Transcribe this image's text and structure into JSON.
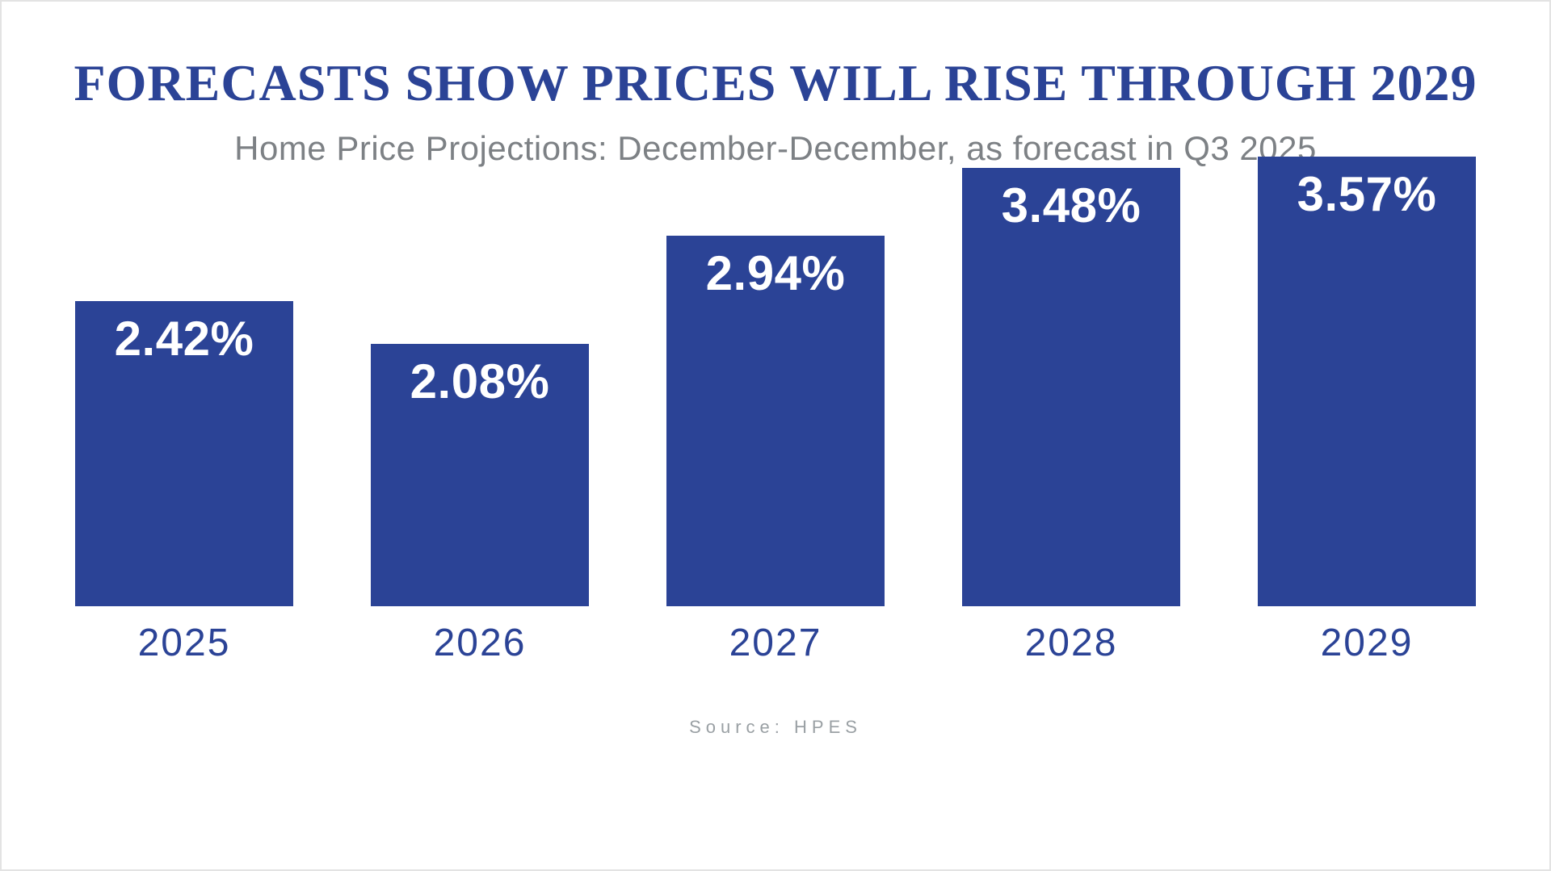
{
  "chart_data": {
    "type": "bar",
    "title": "FORECASTS SHOW PRICES WILL RISE THROUGH 2029",
    "subtitle": "Home Price Projections: December-December, as forecast in Q3 2025",
    "categories": [
      "2025",
      "2026",
      "2027",
      "2028",
      "2029"
    ],
    "values": [
      2.42,
      2.08,
      2.94,
      3.48,
      3.57
    ],
    "value_labels": [
      "2.42%",
      "2.08%",
      "2.94%",
      "3.48%",
      "3.57%"
    ],
    "xlabel": "",
    "ylabel": "",
    "ylim": [
      0,
      3.57
    ],
    "grid": false,
    "legend": "none",
    "source": "Source: HPES",
    "colors": {
      "bar": "#2b4396",
      "bar_value_label": "#ffffff",
      "title": "#2b4396",
      "subtitle": "#7d8185",
      "axis_label": "#2b4396",
      "source": "#9aa0a4",
      "background": "#ffffff"
    }
  }
}
